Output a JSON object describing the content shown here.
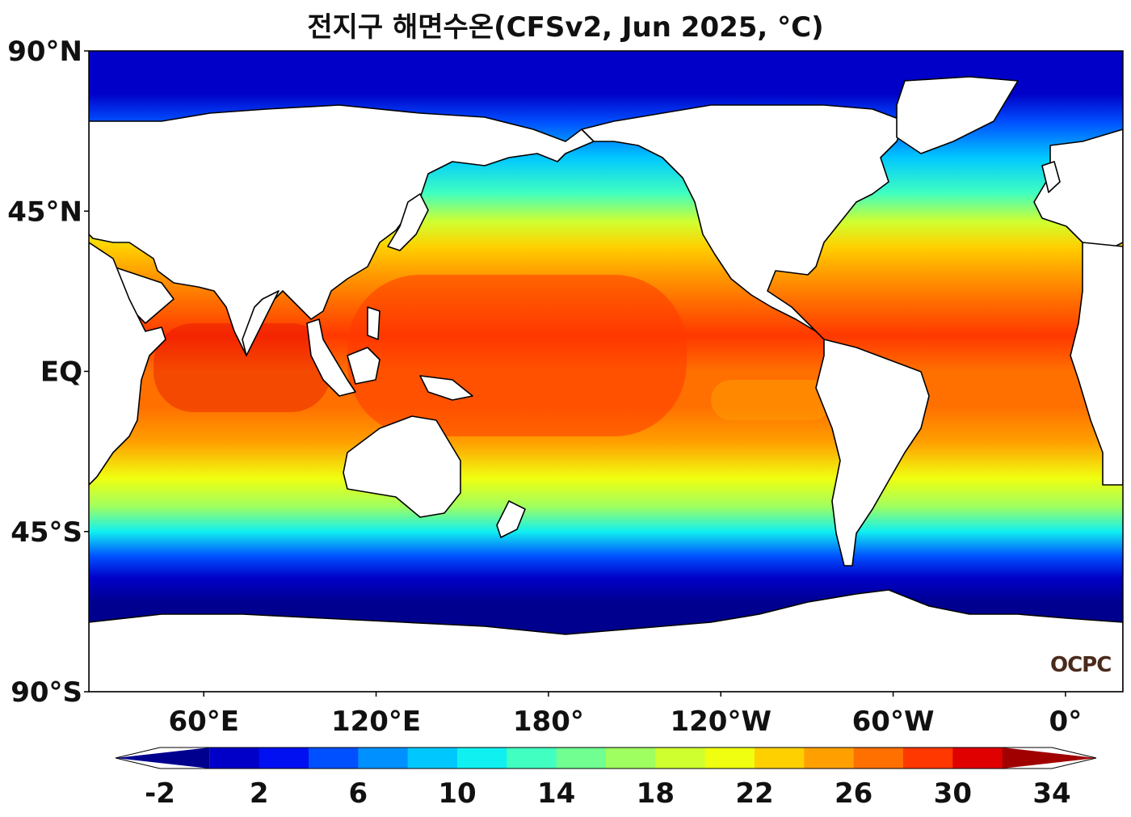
{
  "title": "전지구 해면수온(CFSv2, Jun 2025, °C)",
  "logo": "OCPC",
  "map": {
    "projection": "plate-carree",
    "central_longitude": 200,
    "lon_range": [
      20,
      380
    ],
    "lat_range": [
      -90,
      90
    ],
    "lat_ticks": [
      {
        "lat": 90,
        "label": "90°N"
      },
      {
        "lat": 45,
        "label": "45°N"
      },
      {
        "lat": 0,
        "label": "EQ"
      },
      {
        "lat": -45,
        "label": "45°S"
      },
      {
        "lat": -90,
        "label": "90°S"
      }
    ],
    "lon_ticks": [
      {
        "lon": 60,
        "label": "60°E"
      },
      {
        "lon": 120,
        "label": "120°E"
      },
      {
        "lon": 180,
        "label": "180°"
      },
      {
        "lon": 240,
        "label": "120°W"
      },
      {
        "lon": 300,
        "label": "60°W"
      },
      {
        "lon": 360,
        "label": "0°"
      }
    ],
    "land_color": "#ffffff",
    "coastline_color": "#000000"
  },
  "colorbar": {
    "levels": [
      -2,
      0,
      2,
      4,
      6,
      8,
      10,
      12,
      14,
      16,
      18,
      20,
      22,
      24,
      26,
      28,
      30,
      32,
      34
    ],
    "tick_labels": [
      "-2",
      "2",
      "6",
      "10",
      "14",
      "18",
      "22",
      "26",
      "30",
      "34"
    ],
    "tick_values": [
      -2,
      2,
      6,
      10,
      14,
      18,
      22,
      26,
      30,
      34
    ],
    "colors": [
      "#00008f",
      "#0000c8",
      "#0010f0",
      "#0050ff",
      "#0090ff",
      "#00c8ff",
      "#10f0f0",
      "#40ffc0",
      "#70ff90",
      "#a0ff60",
      "#d0ff30",
      "#f0ff10",
      "#ffd000",
      "#ffa000",
      "#ff7000",
      "#ff3800",
      "#e00000",
      "#a00000"
    ],
    "extend": "both"
  },
  "chart_data": {
    "type": "heatmap",
    "variable": "SST",
    "units": "°C",
    "zonal_profile": [
      {
        "lat": 78,
        "pac": 0,
        "atl": 2
      },
      {
        "lat": 70,
        "pac": 4,
        "atl": 6
      },
      {
        "lat": 60,
        "pac": 7,
        "atl": 9
      },
      {
        "lat": 50,
        "pac": 11,
        "atl": 13
      },
      {
        "lat": 42,
        "pac": 17,
        "atl": 20
      },
      {
        "lat": 35,
        "pac": 22,
        "atl": 24
      },
      {
        "lat": 28,
        "pac": 25,
        "atl": 26
      },
      {
        "lat": 20,
        "pac": 28,
        "atl": 27
      },
      {
        "lat": 10,
        "pac": 29,
        "atl": 28
      },
      {
        "lat": 0,
        "pac": 28,
        "atl": 27
      },
      {
        "lat": -10,
        "pac": 28,
        "atl": 26
      },
      {
        "lat": -20,
        "pac": 26,
        "atl": 24
      },
      {
        "lat": -30,
        "pac": 21,
        "atl": 21
      },
      {
        "lat": -38,
        "pac": 16,
        "atl": 16
      },
      {
        "lat": -45,
        "pac": 11,
        "atl": 10
      },
      {
        "lat": -52,
        "pac": 6,
        "atl": 5
      },
      {
        "lat": -58,
        "pac": 2,
        "atl": 1
      },
      {
        "lat": -65,
        "pac": -1,
        "atl": -1
      }
    ]
  }
}
